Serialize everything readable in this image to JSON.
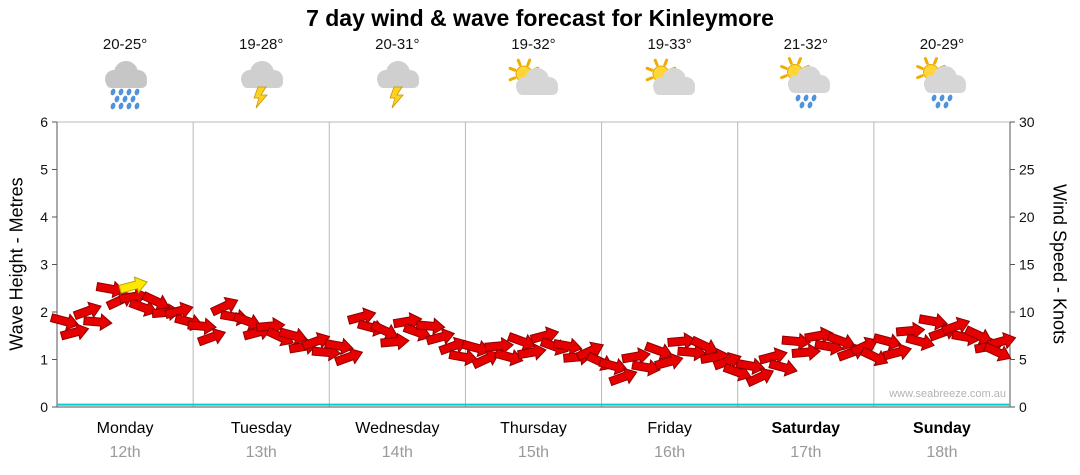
{
  "title": "7 day wind & wave forecast for Kinleymore",
  "watermark": "www.seabreeze.com.au",
  "days": [
    {
      "name": "Monday",
      "date": "12th",
      "temp": "20-25°",
      "icon": "rain",
      "bold": false
    },
    {
      "name": "Tuesday",
      "date": "13th",
      "temp": "19-28°",
      "icon": "storm",
      "bold": false
    },
    {
      "name": "Wednesday",
      "date": "14th",
      "temp": "20-31°",
      "icon": "storm",
      "bold": false
    },
    {
      "name": "Thursday",
      "date": "15th",
      "temp": "19-32°",
      "icon": "partly-cloudy",
      "bold": false
    },
    {
      "name": "Friday",
      "date": "16th",
      "temp": "19-33°",
      "icon": "partly-cloudy",
      "bold": false
    },
    {
      "name": "Saturday",
      "date": "17th",
      "temp": "21-32°",
      "icon": "sun-showers",
      "bold": true
    },
    {
      "name": "Sunday",
      "date": "18th",
      "temp": "20-29°",
      "icon": "sun-showers",
      "bold": true
    }
  ],
  "chart_data": {
    "type": "line",
    "title": "7 day wind & wave forecast for Kinleymore",
    "grid": "vertical-day-lines",
    "legend": "none",
    "samples_per_day": 6,
    "left_axis": {
      "label": "Wave Height - Metres",
      "min": 0,
      "max": 6,
      "ticks": [
        0,
        1,
        2,
        3,
        4,
        5,
        6
      ]
    },
    "right_axis": {
      "label": "Wind Speed - Knots",
      "min": 0,
      "max": 30,
      "ticks": [
        0,
        5,
        10,
        15,
        20,
        25,
        30
      ]
    },
    "series": [
      {
        "name": "Wind Speed",
        "unit": "knots",
        "axis": "right",
        "color": "#e60000",
        "marker": "direction-arrow",
        "values": [
          8.6,
          9.7,
          12.0,
          11.2,
          10.7,
          9.7,
          8.1,
          10.2,
          8.6,
          8.1,
          7.1,
          6.5,
          6.0,
          9.1,
          7.6,
          8.6,
          8.1,
          6.0,
          5.8,
          6.0,
          6.5,
          7.1,
          6.0,
          5.5,
          3.9,
          4.9,
          5.5,
          6.5,
          6.0,
          4.4,
          3.9,
          4.9,
          6.5,
          7.1,
          6.5,
          6.0,
          6.5,
          7.6,
          8.6,
          8.1,
          7.1,
          6.5
        ]
      },
      {
        "name": "Wave Height",
        "unit": "metres",
        "axis": "left",
        "color": "#00cfcf",
        "constant_value": 0.05
      }
    ],
    "wind_directions_deg": [
      15,
      -20,
      10,
      -10,
      25,
      -15,
      5,
      -25,
      20,
      -5,
      15,
      -20,
      10,
      -15,
      25,
      -10,
      5,
      -20,
      15,
      -5,
      20,
      -15,
      10,
      -25,
      15,
      -10,
      20,
      -5,
      25,
      -20,
      10,
      -15,
      5,
      -10,
      20,
      -25,
      15,
      -5,
      10,
      -20,
      25,
      -15
    ],
    "highlight_arrow": {
      "index": 3,
      "color": "#ffe800"
    }
  }
}
